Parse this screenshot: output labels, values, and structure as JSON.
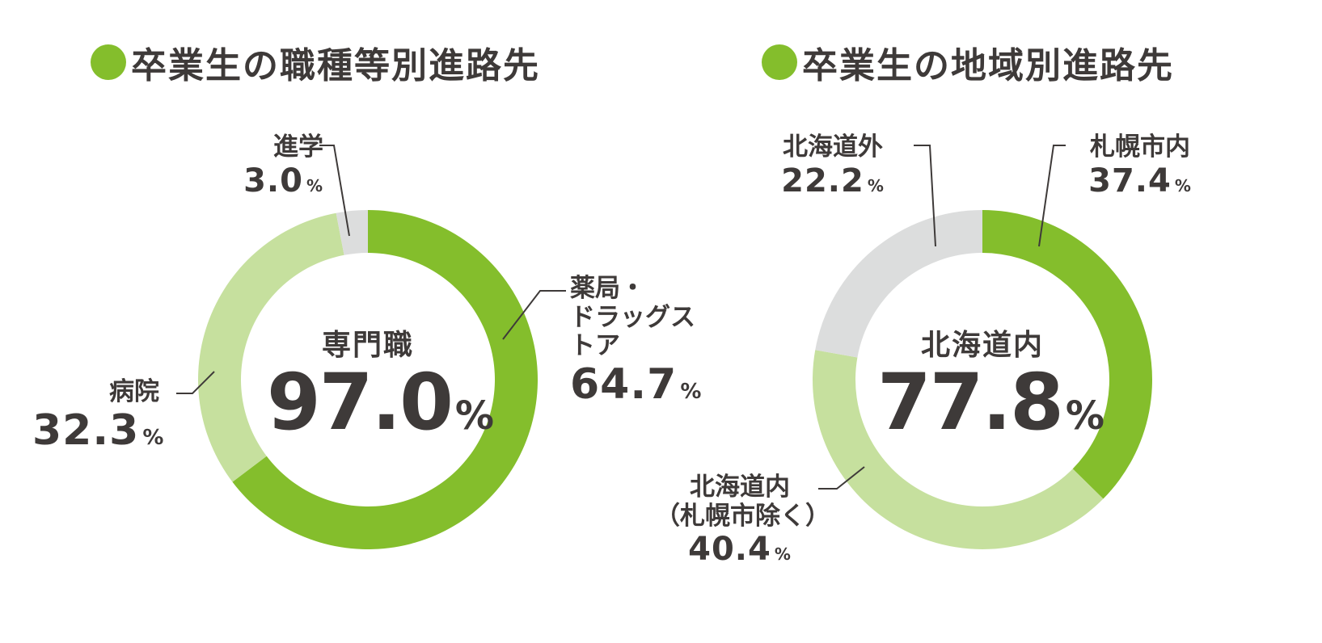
{
  "colors": {
    "accent": "#84be2c",
    "light_green": "#c6e09e",
    "gray": "#dcdddd",
    "text": "#3e3a39"
  },
  "chart_data": [
    {
      "type": "pie",
      "title": "卒業生の職種等別進路先",
      "center_label": "専門職",
      "center_value": "97.0",
      "center_unit": "%",
      "slices": [
        {
          "label": "薬局・ドラッグストア",
          "label_line1": "薬局・",
          "label_line2": "ドラッグストア",
          "value": 64.7,
          "value_text": "64.7",
          "color": "#84be2c"
        },
        {
          "label": "病院",
          "value": 32.3,
          "value_text": "32.3",
          "color": "#c6e09e"
        },
        {
          "label": "進学",
          "value": 3.0,
          "value_text": "3.0",
          "color": "#dcdddd"
        }
      ]
    },
    {
      "type": "pie",
      "title": "卒業生の地域別進路先",
      "center_label": "北海道内",
      "center_value": "77.8",
      "center_unit": "%",
      "slices": [
        {
          "label": "札幌市内",
          "value": 37.4,
          "value_text": "37.4",
          "color": "#84be2c"
        },
        {
          "label": "北海道内（札幌市除く）",
          "label_line1": "北海道内",
          "label_line2": "（札幌市除く）",
          "value": 40.4,
          "value_text": "40.4",
          "color": "#c6e09e"
        },
        {
          "label": "北海道外",
          "value": 22.2,
          "value_text": "22.2",
          "color": "#dcdddd"
        }
      ]
    }
  ],
  "unit": "%"
}
